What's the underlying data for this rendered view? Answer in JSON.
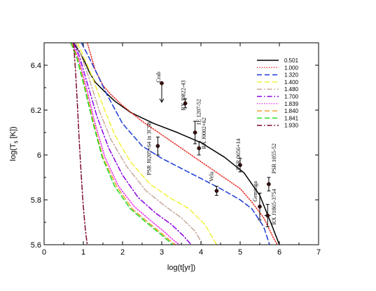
{
  "chart_data": {
    "type": "line",
    "title": "",
    "xlabel": "log(t[yr])",
    "ylabel": "log(T",
    "ylabel_sub": "s",
    "ylabel_tail": " [K])",
    "xlim": [
      0,
      7
    ],
    "ylim": [
      5.6,
      6.5
    ],
    "x_ticks": [
      0,
      1,
      2,
      3,
      4,
      5,
      6,
      7
    ],
    "y_ticks": [
      5.6,
      5.8,
      6,
      6.2,
      6.4
    ],
    "y_tick_labels": [
      "5.6",
      "5.8",
      "6",
      "6.2",
      "6.4"
    ],
    "grid": false,
    "legend_position": "top-right",
    "series": [
      {
        "name": "0.501",
        "color": "#000000",
        "dash": "solid",
        "x": [
          0.75,
          0.9,
          1.05,
          1.15,
          1.25,
          1.3,
          1.5,
          1.8,
          2.2,
          2.8,
          3.4,
          4.0,
          4.6,
          5.1,
          5.5,
          5.8,
          6.0
        ],
        "y": [
          6.5,
          6.46,
          6.41,
          6.37,
          6.34,
          6.325,
          6.29,
          6.24,
          6.19,
          6.14,
          6.1,
          6.055,
          5.99,
          5.92,
          5.82,
          5.69,
          5.6
        ]
      },
      {
        "name": "1.000",
        "color": "#e8231b",
        "dash": "dotted",
        "x": [
          1.1,
          1.2,
          1.3,
          1.5,
          1.7,
          2.0,
          2.5,
          3.0,
          3.5,
          4.0,
          4.5,
          5.0,
          5.3,
          5.6,
          5.85,
          5.95
        ],
        "y": [
          6.5,
          6.44,
          6.38,
          6.31,
          6.27,
          6.22,
          6.15,
          6.09,
          6.03,
          5.97,
          5.91,
          5.85,
          5.79,
          5.72,
          5.63,
          5.6
        ]
      },
      {
        "name": "1.320",
        "color": "#1a3ad6",
        "dash": "dashed",
        "x": [
          0.95,
          1.1,
          1.3,
          1.6,
          2.0,
          2.5,
          3.0,
          3.5,
          4.0,
          4.5,
          5.0,
          5.3,
          5.6,
          5.75
        ],
        "y": [
          6.5,
          6.45,
          6.38,
          6.27,
          6.14,
          6.04,
          5.985,
          5.94,
          5.895,
          5.85,
          5.8,
          5.76,
          5.68,
          5.6
        ]
      },
      {
        "name": "1.400",
        "color": "#f2f23a",
        "dash": "dashed",
        "x": [
          0.85,
          1.0,
          1.2,
          1.5,
          1.8,
          2.2,
          2.7,
          3.2,
          3.7,
          4.1,
          4.4
        ],
        "y": [
          6.5,
          6.44,
          6.36,
          6.22,
          6.09,
          5.97,
          5.87,
          5.81,
          5.76,
          5.69,
          5.6
        ]
      },
      {
        "name": "1.480",
        "color": "#c8a89c",
        "dash": "dashdot",
        "x": [
          0.8,
          0.95,
          1.15,
          1.4,
          1.7,
          2.1,
          2.6,
          3.1,
          3.5,
          3.85,
          4.05
        ],
        "y": [
          6.5,
          6.44,
          6.34,
          6.2,
          6.07,
          5.95,
          5.84,
          5.77,
          5.72,
          5.66,
          5.6
        ]
      },
      {
        "name": "1.700",
        "color": "#8b00e8",
        "dash": "dashdot",
        "x": [
          0.75,
          0.9,
          1.1,
          1.35,
          1.65,
          2.0,
          2.4,
          2.85,
          3.25,
          3.55,
          3.75
        ],
        "y": [
          6.5,
          6.44,
          6.32,
          6.17,
          6.03,
          5.91,
          5.81,
          5.74,
          5.69,
          5.64,
          5.6
        ]
      },
      {
        "name": "1.839",
        "color": "#ee22ee",
        "dash": "dotted",
        "x": [
          0.72,
          0.88,
          1.08,
          1.3,
          1.55,
          1.9,
          2.3,
          2.7,
          3.05,
          3.3,
          3.45
        ],
        "y": [
          6.5,
          6.43,
          6.3,
          6.14,
          5.99,
          5.86,
          5.77,
          5.71,
          5.66,
          5.62,
          5.6
        ]
      },
      {
        "name": "1.840",
        "color": "#f0a030",
        "dash": "dashed",
        "x": [
          0.7,
          0.86,
          1.05,
          1.27,
          1.5,
          1.85,
          2.25,
          2.65,
          3.0,
          3.2,
          3.35
        ],
        "y": [
          6.5,
          6.43,
          6.3,
          6.14,
          5.99,
          5.86,
          5.76,
          5.7,
          5.65,
          5.62,
          5.6
        ]
      },
      {
        "name": "1.841",
        "color": "#22dd22",
        "dash": "dashed",
        "x": [
          0.68,
          0.84,
          1.03,
          1.25,
          1.48,
          1.8,
          2.2,
          2.6,
          2.95,
          3.15,
          3.28
        ],
        "y": [
          6.5,
          6.43,
          6.3,
          6.14,
          5.99,
          5.86,
          5.76,
          5.7,
          5.65,
          5.62,
          5.6
        ]
      },
      {
        "name": "1.930",
        "color": "#7a0a2a",
        "dash": "dashdot",
        "x": [
          0.75,
          0.8,
          0.85,
          0.9,
          0.95,
          1.0,
          1.05,
          1.1
        ],
        "y": [
          6.5,
          6.38,
          6.22,
          6.05,
          5.9,
          5.77,
          5.67,
          5.6
        ]
      }
    ],
    "observations": [
      {
        "label": "Crab",
        "x": 3.0,
        "y": 6.32,
        "upper_limit": true,
        "arrow_to": 6.235,
        "xerr": 0,
        "yerr": 0,
        "label_angle": -90
      },
      {
        "label": "RX J0822-43",
        "x": 3.6,
        "y": 6.23,
        "xerr": 0,
        "yerr": 0.02,
        "label_angle": -90
      },
      {
        "label": "1E 1207-52",
        "x": 3.85,
        "y": 6.1,
        "xerr": 0.05,
        "yerr": 0.05,
        "label_angle": -90
      },
      {
        "label": "RX J0002+62",
        "x": 3.95,
        "y": 6.03,
        "xerr": 0,
        "yerr": 0.03,
        "label_angle": -90
      },
      {
        "label": "PSR J0205+64 in 3C58",
        "x": 2.9,
        "y": 6.04,
        "upper_limit": false,
        "xerr": 0,
        "yerr": 0.04,
        "label_angle": -90
      },
      {
        "label": "Vela",
        "x": 4.4,
        "y": 5.84,
        "xerr": 0,
        "yerr": 0.02,
        "label_angle": -90
      },
      {
        "label": "PSR 0656+14",
        "x": 5.0,
        "y": 5.955,
        "xerr": 0,
        "yerr": 0.03,
        "label_angle": -90
      },
      {
        "label": "Geminga",
        "x": 5.5,
        "y": 5.77,
        "xerr": 0,
        "yerr": 0.06,
        "label_angle": -90
      },
      {
        "label": "PSR 1055-52",
        "x": 5.73,
        "y": 5.87,
        "xerr": 0,
        "yerr": 0.03,
        "label_angle": -90
      },
      {
        "label": "RX J1865-3754",
        "x": 5.7,
        "y": 5.73,
        "xerr": 0.08,
        "yerr": 0.05,
        "label_angle": -90
      }
    ]
  }
}
